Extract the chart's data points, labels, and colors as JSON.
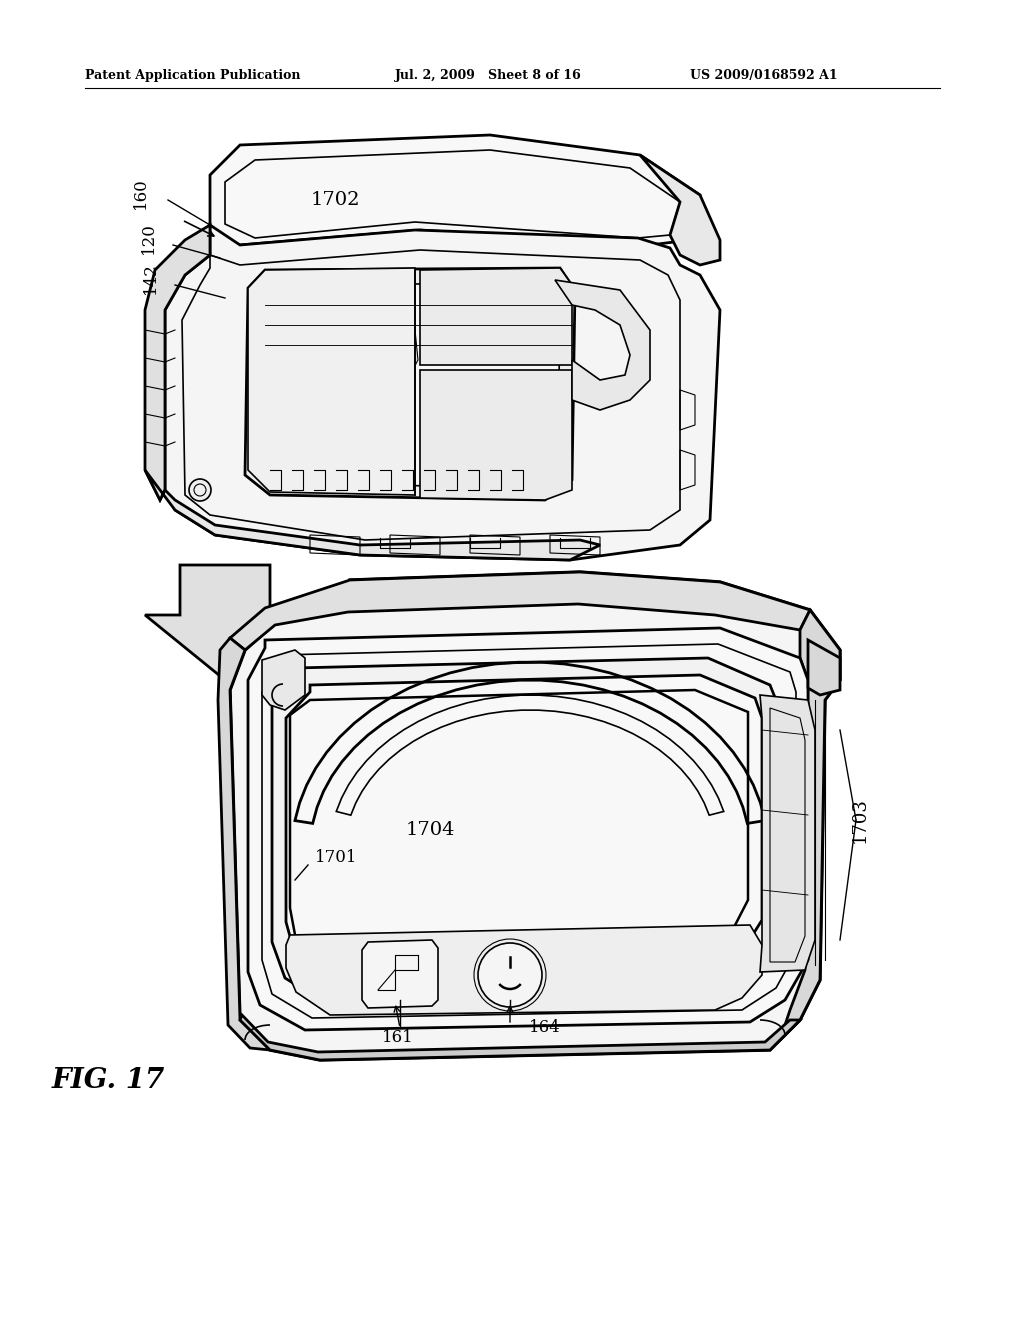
{
  "bg_color": "#ffffff",
  "header_left": "Patent Application Publication",
  "header_mid": "Jul. 2, 2009   Sheet 8 of 16",
  "header_right": "US 2009/0168592 A1",
  "fig_label": "FIG. 17",
  "line_color": "#000000",
  "text_color": "#000000",
  "lw_main": 2.0,
  "lw_detail": 1.2,
  "lw_thin": 0.8
}
